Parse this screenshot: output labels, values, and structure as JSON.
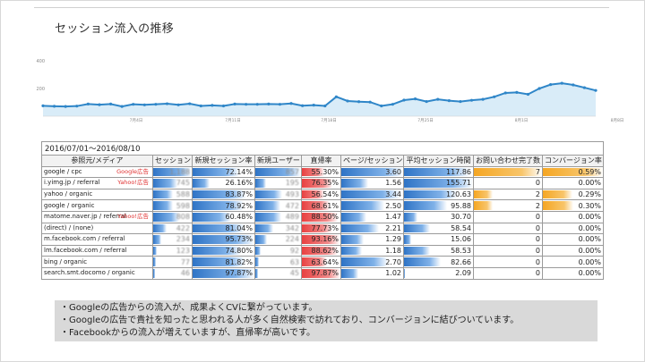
{
  "slide": {
    "title": "セッション流入の推移"
  },
  "chart_data": {
    "type": "area",
    "y_ticks": [
      "400",
      "200"
    ],
    "x_ticks": [
      "7月4日",
      "7月11日",
      "7月18日",
      "7月25日",
      "8月1日",
      "8月8日"
    ],
    "ylim": [
      0,
      400
    ],
    "values": [
      75,
      72,
      70,
      73,
      88,
      83,
      88,
      70,
      86,
      82,
      86,
      90,
      82,
      90,
      74,
      78,
      74,
      88,
      86,
      86,
      88,
      86,
      92,
      76,
      80,
      74,
      140,
      110,
      105,
      102,
      74,
      86,
      116,
      125,
      106,
      122,
      112,
      106,
      115,
      122,
      140,
      168,
      172,
      158,
      200,
      228,
      238,
      226,
      206,
      186
    ],
    "line_color": "#2f86c8",
    "fill_color": "#d9ecf8",
    "grid": false
  },
  "table": {
    "date_range": "2016/07/01～2016/08/10",
    "headers": [
      "参照元/メディア",
      "セッション",
      "新規セッション率",
      "新規ユーザー",
      "直帰率",
      "ページ/セッション",
      "平均セッション時間",
      "お問い合わせ完了数",
      "コンバージョン率"
    ],
    "rows": [
      {
        "source": "google / cpc",
        "tag": "Google広告",
        "sessions": "1,188",
        "new_rate": "72.14%",
        "new_users": "857",
        "bounce": "55.30%",
        "pps": "3.60",
        "avg_time": "117.86",
        "inquiries": "7",
        "cvr": "0.59%",
        "bar_sessions": 1.0,
        "bar_new_rate": 0.75,
        "bar_new_users": 1.0,
        "bar_bounce": 0.57,
        "bar_pps": 1.0,
        "bar_time": 0.95,
        "bar_inq": 1.0,
        "bar_cvr": 1.0
      },
      {
        "source": "i.yimg.jp / referral",
        "tag": "Yahoo!広告",
        "sessions": "745",
        "new_rate": "26.16%",
        "new_users": "195",
        "bounce": "76.35%",
        "pps": "1.56",
        "avg_time": "155.71",
        "inquiries": "0",
        "cvr": "0.00%",
        "bar_sessions": 0.63,
        "bar_new_rate": 0.27,
        "bar_new_users": 0.23,
        "bar_bounce": 0.79,
        "bar_pps": 0.43,
        "bar_time": 1.0,
        "bar_inq": 0,
        "bar_cvr": 0
      },
      {
        "source": "yahoo / organic",
        "tag": "",
        "sessions": "588",
        "new_rate": "83.87%",
        "new_users": "493",
        "bounce": "56.54%",
        "pps": "3.44",
        "avg_time": "120.63",
        "inquiries": "2",
        "cvr": "0.29%",
        "bar_sessions": 0.5,
        "bar_new_rate": 0.87,
        "bar_new_users": 0.58,
        "bar_bounce": 0.58,
        "bar_pps": 0.95,
        "bar_time": 0.77,
        "bar_inq": 0.28,
        "bar_cvr": 0.49
      },
      {
        "source": "google / organic",
        "tag": "",
        "sessions": "598",
        "new_rate": "78.92%",
        "new_users": "472",
        "bounce": "68.61%",
        "pps": "2.50",
        "avg_time": "95.88",
        "inquiries": "2",
        "cvr": "0.30%",
        "bar_sessions": 0.5,
        "bar_new_rate": 0.82,
        "bar_new_users": 0.55,
        "bar_bounce": 0.71,
        "bar_pps": 0.69,
        "bar_time": 0.62,
        "bar_inq": 0.28,
        "bar_cvr": 0.5
      },
      {
        "source": "matome.naver.jp / referral",
        "tag": "Yahoo!広告",
        "sessions": "808",
        "new_rate": "60.48%",
        "new_users": "489",
        "bounce": "88.50%",
        "pps": "1.47",
        "avg_time": "30.70",
        "inquiries": "0",
        "cvr": "0.00%",
        "bar_sessions": 0.68,
        "bar_new_rate": 0.63,
        "bar_new_users": 0.57,
        "bar_bounce": 0.92,
        "bar_pps": 0.41,
        "bar_time": 0.2,
        "bar_inq": 0,
        "bar_cvr": 0
      },
      {
        "source": "(direct) / (none)",
        "tag": "",
        "sessions": "422",
        "new_rate": "81.04%",
        "new_users": "342",
        "bounce": "77.73%",
        "pps": "2.21",
        "avg_time": "58.54",
        "inquiries": "0",
        "cvr": "0.00%",
        "bar_sessions": 0.36,
        "bar_new_rate": 0.84,
        "bar_new_users": 0.4,
        "bar_bounce": 0.8,
        "bar_pps": 0.61,
        "bar_time": 0.38,
        "bar_inq": 0,
        "bar_cvr": 0
      },
      {
        "source": "m.facebook.com / referral",
        "tag": "",
        "sessions": "234",
        "new_rate": "95.73%",
        "new_users": "224",
        "bounce": "93.16%",
        "pps": "1.29",
        "avg_time": "15.06",
        "inquiries": "0",
        "cvr": "0.00%",
        "bar_sessions": 0.2,
        "bar_new_rate": 1.0,
        "bar_new_users": 0.26,
        "bar_bounce": 0.97,
        "bar_pps": 0.36,
        "bar_time": 0.1,
        "bar_inq": 0,
        "bar_cvr": 0
      },
      {
        "source": "lm.facebook.com / referral",
        "tag": "",
        "sessions": "123",
        "new_rate": "74.80%",
        "new_users": "92",
        "bounce": "88.62%",
        "pps": "1.18",
        "avg_time": "58.53",
        "inquiries": "0",
        "cvr": "0.00%",
        "bar_sessions": 0.1,
        "bar_new_rate": 0.78,
        "bar_new_users": 0.11,
        "bar_bounce": 0.92,
        "bar_pps": 0.33,
        "bar_time": 0.38,
        "bar_inq": 0,
        "bar_cvr": 0
      },
      {
        "source": "bing / organic",
        "tag": "",
        "sessions": "77",
        "new_rate": "81.82%",
        "new_users": "63",
        "bounce": "63.64%",
        "pps": "2.70",
        "avg_time": "82.66",
        "inquiries": "0",
        "cvr": "0.00%",
        "bar_sessions": 0.07,
        "bar_new_rate": 0.85,
        "bar_new_users": 0.07,
        "bar_bounce": 0.66,
        "bar_pps": 0.75,
        "bar_time": 0.53,
        "bar_inq": 0,
        "bar_cvr": 0
      },
      {
        "source": "search.smt.docomo / organic",
        "tag": "",
        "sessions": "46",
        "new_rate": "97.87%",
        "new_users": "45",
        "bounce": "97.87%",
        "pps": "1.02",
        "avg_time": "2.09",
        "inquiries": "0",
        "cvr": "0.00%",
        "bar_sessions": 0.04,
        "bar_new_rate": 1.0,
        "bar_new_users": 0.05,
        "bar_bounce": 1.0,
        "bar_pps": 0.28,
        "bar_time": 0.01,
        "bar_inq": 0,
        "bar_cvr": 0
      }
    ]
  },
  "notes": [
    "・Googleの広告からの流入が、成果よくCVに繋がっています。",
    "・Googleの広告で貴社を知ったと思われる人が多く自然検索で訪れており、コンバージョンに結びついています。",
    "・Facebookからの流入が増えていますが、直帰率が高いです。"
  ]
}
